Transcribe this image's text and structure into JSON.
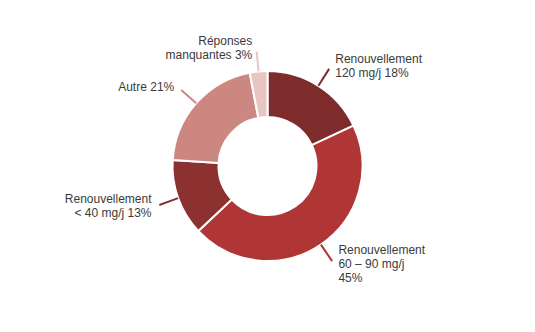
{
  "chart_data": {
    "type": "pie",
    "categories": [
      "Renouvellement\n120 mg/j 18%",
      "Renouvellement\n60 – 90 mg/j\n45%",
      "Renouvellement\n< 40 mg/j 13%",
      "Autre 21%",
      "Réponses\nmanquantes 3%"
    ],
    "values": [
      18,
      45,
      13,
      21,
      3
    ],
    "colors": [
      "#7d2b2b",
      "#b03535",
      "#8c3030",
      "#cc8880",
      "#e8c5c0"
    ]
  }
}
